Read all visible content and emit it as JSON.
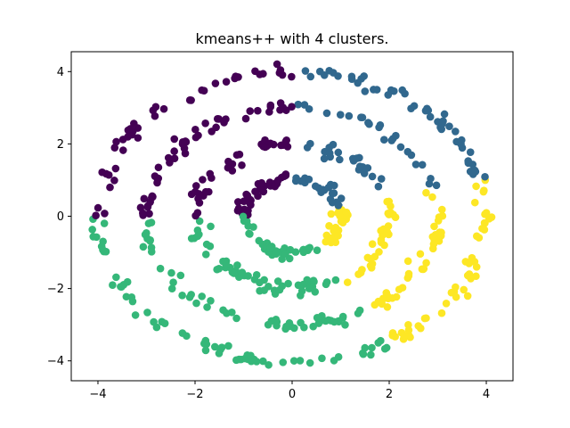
{
  "chart_data": {
    "type": "scatter",
    "title": "kmeans++ with 4 clusters.",
    "xlabel": "",
    "ylabel": "",
    "xlim": [
      -4.55,
      4.55
    ],
    "ylim": [
      -4.55,
      4.55
    ],
    "x_ticks": [
      -4,
      -2,
      0,
      2,
      4
    ],
    "y_ticks": [
      -4,
      -2,
      0,
      2,
      4
    ],
    "x_tick_labels": [
      "−4",
      "−2",
      "0",
      "2",
      "4"
    ],
    "y_tick_labels": [
      "−4",
      "−2",
      "0",
      "2",
      "4"
    ],
    "grid": false,
    "legend": "none",
    "rings": [
      {
        "radius": 1.0,
        "points": 120
      },
      {
        "radius": 2.0,
        "points": 140
      },
      {
        "radius": 3.0,
        "points": 170
      },
      {
        "radius": 4.0,
        "points": 200
      }
    ],
    "noise": 0.08,
    "clusters": [
      {
        "id": 0,
        "color": "#440154",
        "angle_range_deg": [
          90,
          180
        ]
      },
      {
        "id": 1,
        "color": "#31688e",
        "angle_range_deg": [
          15,
          90
        ]
      },
      {
        "id": 2,
        "color": "#35b779",
        "angle_range_deg": [
          180,
          300
        ]
      },
      {
        "id": 3,
        "color": "#fde725",
        "angle_range_deg": [
          300,
          375
        ]
      }
    ]
  }
}
